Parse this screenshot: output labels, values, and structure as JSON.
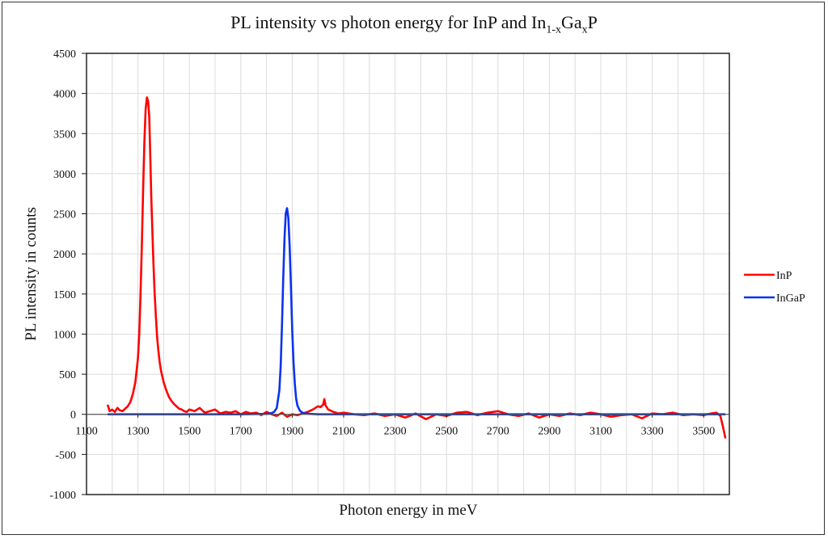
{
  "chart_data": {
    "type": "line",
    "title_parts": {
      "main": "PL intensity vs photon energy for InP and In",
      "sub1": "1-x",
      "mid": "Ga",
      "sub2": "x",
      "end": "P"
    },
    "xlabel": "Photon energy in meV",
    "ylabel": "PL intensity in counts",
    "xlim": [
      1100,
      3600
    ],
    "ylim": [
      -1000,
      4500
    ],
    "xticks": [
      1100,
      1300,
      1500,
      1700,
      1900,
      2100,
      2300,
      2500,
      2700,
      2900,
      3100,
      3300,
      3500
    ],
    "xgrid_step": 100,
    "yticks": [
      -1000,
      -500,
      0,
      500,
      1000,
      1500,
      2000,
      2500,
      3000,
      3500,
      4000,
      4500
    ],
    "grid": true,
    "legend_position": "right",
    "series": [
      {
        "name": "InP",
        "color": "#ff0000",
        "x": [
          1182,
          1190,
          1200,
          1210,
          1220,
          1230,
          1240,
          1250,
          1260,
          1270,
          1280,
          1290,
          1300,
          1305,
          1310,
          1315,
          1320,
          1325,
          1330,
          1335,
          1340,
          1344,
          1348,
          1352,
          1356,
          1360,
          1365,
          1370,
          1375,
          1380,
          1385,
          1390,
          1395,
          1400,
          1410,
          1420,
          1430,
          1440,
          1450,
          1460,
          1470,
          1480,
          1490,
          1500,
          1520,
          1540,
          1560,
          1580,
          1600,
          1620,
          1640,
          1660,
          1680,
          1700,
          1720,
          1740,
          1760,
          1780,
          1800,
          1820,
          1840,
          1860,
          1880,
          1900,
          1920,
          1940,
          1960,
          1980,
          2000,
          2010,
          2020,
          2025,
          2030,
          2040,
          2060,
          2080,
          2100,
          2140,
          2180,
          2220,
          2260,
          2300,
          2340,
          2380,
          2420,
          2460,
          2500,
          2540,
          2580,
          2620,
          2660,
          2700,
          2740,
          2780,
          2820,
          2860,
          2900,
          2940,
          2980,
          3020,
          3060,
          3100,
          3140,
          3180,
          3220,
          3260,
          3300,
          3340,
          3380,
          3420,
          3460,
          3500,
          3530,
          3550,
          3565,
          3575,
          3585
        ],
        "y": [
          120,
          40,
          60,
          30,
          80,
          50,
          40,
          70,
          100,
          150,
          250,
          400,
          700,
          1000,
          1500,
          2100,
          2800,
          3400,
          3800,
          3950,
          3900,
          3700,
          3200,
          2700,
          2300,
          1900,
          1500,
          1200,
          950,
          780,
          640,
          540,
          470,
          400,
          300,
          220,
          170,
          130,
          100,
          70,
          60,
          40,
          30,
          60,
          40,
          80,
          20,
          40,
          60,
          10,
          30,
          20,
          40,
          0,
          30,
          10,
          20,
          -10,
          30,
          0,
          -20,
          20,
          -30,
          0,
          -10,
          10,
          30,
          60,
          100,
          90,
          120,
          190,
          110,
          60,
          30,
          10,
          20,
          0,
          -10,
          10,
          -20,
          0,
          -40,
          10,
          -60,
          0,
          -20,
          20,
          30,
          -10,
          20,
          40,
          0,
          -20,
          10,
          -40,
          0,
          -20,
          10,
          -10,
          20,
          0,
          -30,
          -10,
          0,
          -50,
          10,
          0,
          20,
          -10,
          0,
          -10,
          10,
          20,
          -20,
          -150,
          -300
        ]
      },
      {
        "name": "InGaP",
        "color": "#0a32f0",
        "x": [
          1182,
          1300,
          1500,
          1700,
          1800,
          1820,
          1830,
          1840,
          1850,
          1855,
          1860,
          1865,
          1870,
          1875,
          1880,
          1885,
          1890,
          1895,
          1900,
          1905,
          1910,
          1915,
          1920,
          1930,
          1940,
          1950,
          1970,
          2000,
          2200,
          2500,
          2800,
          3100,
          3400,
          3585
        ],
        "y": [
          0,
          0,
          0,
          0,
          5,
          15,
          30,
          80,
          300,
          600,
          1100,
          1700,
          2200,
          2500,
          2570,
          2450,
          2100,
          1600,
          1050,
          650,
          380,
          200,
          110,
          45,
          20,
          10,
          5,
          0,
          0,
          0,
          0,
          0,
          0,
          0
        ]
      }
    ]
  }
}
